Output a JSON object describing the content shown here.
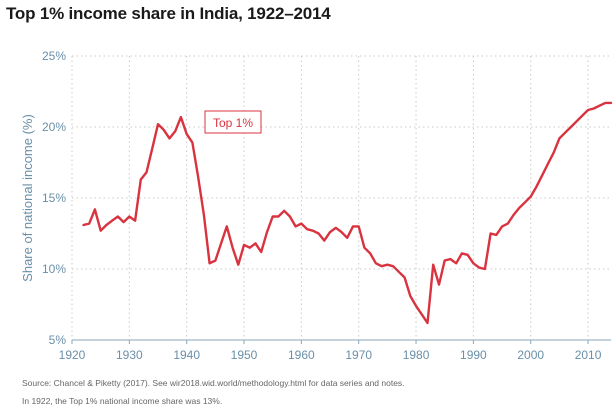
{
  "chart_data": {
    "type": "line",
    "title": "Top 1% income share in India, 1922–2014",
    "xlabel": "",
    "ylabel": "Share of national income (%)",
    "xlim": [
      1920,
      2014
    ],
    "ylim": [
      5,
      25
    ],
    "xticks": [
      1920,
      1930,
      1940,
      1950,
      1960,
      1970,
      1980,
      1990,
      2000,
      2010
    ],
    "yticks": [
      5,
      10,
      15,
      20,
      25
    ],
    "ytick_labels": [
      "5%",
      "10%",
      "15%",
      "20%",
      "25%"
    ],
    "grid": true,
    "legend": "top-left",
    "series": [
      {
        "name": "Top 1%",
        "color": "#d8333f",
        "x": [
          1922,
          1923,
          1924,
          1925,
          1926,
          1927,
          1928,
          1929,
          1930,
          1931,
          1932,
          1933,
          1934,
          1935,
          1936,
          1937,
          1938,
          1939,
          1940,
          1941,
          1942,
          1943,
          1944,
          1945,
          1946,
          1947,
          1948,
          1949,
          1950,
          1951,
          1952,
          1953,
          1954,
          1955,
          1956,
          1957,
          1958,
          1959,
          1960,
          1961,
          1962,
          1963,
          1964,
          1965,
          1966,
          1967,
          1968,
          1969,
          1970,
          1971,
          1972,
          1973,
          1974,
          1975,
          1976,
          1977,
          1978,
          1979,
          1980,
          1981,
          1982,
          1983,
          1984,
          1985,
          1986,
          1987,
          1988,
          1989,
          1990,
          1991,
          1992,
          1993,
          1994,
          1995,
          1996,
          1997,
          1998,
          1999,
          2000,
          2001,
          2002,
          2003,
          2004,
          2005,
          2006,
          2007,
          2008,
          2009,
          2010,
          2011,
          2012,
          2013,
          2014
        ],
        "values": [
          13.1,
          13.2,
          14.2,
          12.7,
          13.1,
          13.4,
          13.7,
          13.3,
          13.7,
          13.4,
          16.3,
          16.8,
          18.5,
          20.2,
          19.8,
          19.2,
          19.7,
          20.7,
          19.5,
          18.9,
          16.5,
          13.8,
          10.4,
          10.6,
          11.8,
          13.0,
          11.5,
          10.3,
          11.7,
          11.5,
          11.8,
          11.2,
          12.6,
          13.7,
          13.7,
          14.1,
          13.7,
          13.0,
          13.2,
          12.8,
          12.7,
          12.5,
          12.0,
          12.6,
          12.9,
          12.6,
          12.2,
          13.0,
          13.0,
          11.5,
          11.1,
          10.4,
          10.2,
          10.3,
          10.2,
          9.8,
          9.4,
          8.1,
          7.4,
          6.8,
          6.2,
          10.3,
          8.9,
          10.6,
          10.7,
          10.4,
          11.1,
          11.0,
          10.4,
          10.1,
          10.0,
          12.5,
          12.4,
          13.0,
          13.2,
          13.8,
          14.3,
          14.7,
          15.1,
          15.8,
          16.6,
          17.4,
          18.2,
          19.2,
          19.6,
          20.0,
          20.4,
          20.8,
          21.2,
          21.3,
          21.5,
          21.7,
          21.7
        ]
      }
    ],
    "footer": [
      "Source: Chancel & Piketty (2017). See wir2018.wid.world/methodology.html for data series and notes.",
      "In 1922, the Top 1% national income share was 13%."
    ]
  }
}
